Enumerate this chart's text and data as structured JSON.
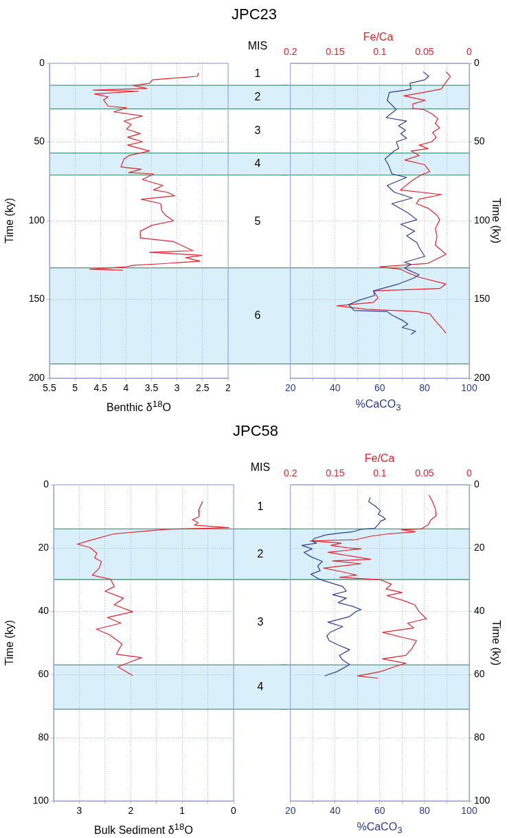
{
  "chart_data": [
    {
      "type": "line",
      "orientation": "horizontal",
      "title": "JPC23",
      "xlabel": "Benthic δ$^{18}$O",
      "ylabel": "Time (ky)",
      "grid": true,
      "annotations": [
        "MIS",
        "1",
        "2",
        "3",
        "4",
        "5",
        "6"
      ],
      "xlim": [
        5.5,
        2
      ],
      "xticks": [
        5.5,
        5,
        4.5,
        4,
        3.5,
        3,
        2.5,
        2
      ],
      "ylim": [
        200,
        0
      ],
      "yticks": [
        0,
        50,
        100,
        150,
        200
      ],
      "bands": [
        {
          "axis": "y",
          "from": 14,
          "to": 29,
          "color": "#d9f0fb"
        },
        {
          "axis": "y",
          "from": 57,
          "to": 71,
          "color": "#d9f0fb"
        },
        {
          "axis": "y",
          "from": 130,
          "to": 191,
          "color": "#d9f0fb"
        }
      ],
      "ref_lines": [
        {
          "axis": "y",
          "value": 14,
          "color": "#4a9a7a"
        },
        {
          "axis": "y",
          "value": 29,
          "color": "#4a9a7a"
        },
        {
          "axis": "y",
          "value": 57,
          "color": "#4a9a7a"
        },
        {
          "axis": "y",
          "value": 71,
          "color": "#4a9a7a"
        },
        {
          "axis": "y",
          "value": 130,
          "color": "#4a9a7a"
        },
        {
          "axis": "y",
          "value": 191,
          "color": "#4a9a7a"
        }
      ],
      "series": [
        {
          "color": "#e8202a",
          "x": [
            6.1,
            8.3,
            10.5,
            12.7,
            14.1,
            16,
            17.1,
            17.8,
            19.5,
            21.4,
            23.3,
            27.3,
            28.3,
            30.9,
            33.5,
            36.7,
            38.9,
            41.8,
            44.7,
            47,
            49.9,
            52,
            55.7,
            58.6,
            60.8,
            65.9,
            67.3,
            69.5,
            70.3,
            73.9,
            77.6,
            80.5,
            82,
            84.2,
            86.4,
            89.2,
            93.6,
            96.5,
            100.1,
            103,
            106.7,
            111,
            113.3,
            119.1,
            120.1,
            122,
            123.5,
            125.7,
            127.4,
            128.3,
            129.3,
            130.8,
            131.5
          ],
          "values": [
            2.58,
            2.6,
            3.48,
            3.54,
            3.86,
            3.59,
            4.64,
            3.76,
            4.62,
            4.35,
            4.44,
            4.35,
            3.99,
            4.24,
            3.68,
            4.04,
            3.9,
            3.99,
            3.72,
            3.97,
            3.68,
            3.97,
            3.54,
            3.94,
            4.04,
            4.1,
            3.7,
            3.95,
            3.46,
            3.68,
            3.28,
            3.46,
            3.19,
            3.05,
            3.7,
            3.32,
            3.3,
            3.23,
            3.07,
            3.5,
            3.72,
            3.72,
            3.07,
            2.69,
            3.54,
            2.51,
            2.83,
            2.55,
            3.32,
            3.86,
            3.99,
            4.71,
            4.06
          ]
        }
      ]
    },
    {
      "type": "line",
      "orientation": "horizontal",
      "xlabel": "%CaCO$_{3}$",
      "x2label": "Fe/Ca",
      "ylabel": "Time (ky)",
      "grid": true,
      "xlim": [
        20,
        100
      ],
      "xticks": [
        20,
        {
          "value": 30,
          "label": null
        },
        40,
        {
          "value": 50,
          "label": null
        },
        60,
        {
          "value": 70,
          "label": null
        },
        80,
        {
          "value": 90,
          "label": null
        },
        100
      ],
      "x2lim": [
        0.2,
        0
      ],
      "x2ticks": [
        0.2,
        0.15,
        0.1,
        0.05,
        0
      ],
      "ylim": [
        200,
        0
      ],
      "yticks": [
        0,
        50,
        100,
        150,
        200
      ],
      "bands": [
        {
          "axis": "y",
          "from": 14,
          "to": 29,
          "color": "#d9f0fb"
        },
        {
          "axis": "y",
          "from": 57,
          "to": 71,
          "color": "#d9f0fb"
        },
        {
          "axis": "y",
          "from": 130,
          "to": 191,
          "color": "#d9f0fb"
        }
      ],
      "ref_lines": [
        {
          "axis": "y",
          "value": 14,
          "color": "#4a9a7a"
        },
        {
          "axis": "y",
          "value": 29,
          "color": "#4a9a7a"
        },
        {
          "axis": "y",
          "value": 57,
          "color": "#4a9a7a"
        },
        {
          "axis": "y",
          "value": 71,
          "color": "#4a9a7a"
        },
        {
          "axis": "y",
          "value": 130,
          "color": "#4a9a7a"
        },
        {
          "axis": "y",
          "value": 191,
          "color": "#4a9a7a"
        }
      ],
      "series": [
        {
          "color": "#2a3a9a",
          "x": [
            5.4,
            8.3,
            10.5,
            12.7,
            16.3,
            17.1,
            18.5,
            23.6,
            29.4,
            34.5,
            36.7,
            39.7,
            42.6,
            44.8,
            47.7,
            49.9,
            54.2,
            55.7,
            60.8,
            64.4,
            70.3,
            72.5,
            77.6,
            81.9,
            85.6,
            89.2,
            95,
            99.4,
            102.3,
            106.7,
            109.6,
            114,
            116.9,
            122.7,
            126.4,
            127.8,
            130,
            131.5,
            134.4,
            136.6,
            140.2,
            144.6,
            147.5,
            150.4,
            153.4,
            157,
            157.7,
            159.9,
            163.6,
            165.7,
            167.9,
            170.1,
            172.3
          ],
          "values": [
            79.4,
            81.9,
            80.1,
            73.5,
            74,
            71.5,
            64.3,
            63.3,
            67.4,
            62.8,
            72,
            68.4,
            71.5,
            69.4,
            72,
            67.4,
            68.4,
            66.4,
            62.3,
            63.8,
            65.4,
            72,
            63.3,
            66.4,
            74.5,
            65.4,
            72.5,
            76.6,
            69.4,
            75.6,
            72,
            76.6,
            77.6,
            80.1,
            71,
            74,
            71,
            73,
            77.6,
            75,
            68.4,
            57.2,
            57.7,
            51.1,
            46,
            48.5,
            63.3,
            65.4,
            70.5,
            72.5,
            70,
            76,
            74
          ]
        },
        {
          "color": "#e8202a",
          "axis": "x2",
          "x": [
            5.4,
            8.3,
            10.5,
            13.4,
            16.3,
            18.5,
            20.7,
            23.6,
            25.8,
            28.7,
            29.4,
            32.4,
            35.3,
            38.2,
            41.1,
            44,
            47,
            49.9,
            52,
            54.2,
            55.7,
            58.6,
            61.5,
            64.4,
            68.8,
            71,
            74.6,
            80.5,
            83.4,
            86.3,
            89.2,
            92.1,
            96.5,
            99.4,
            105.2,
            110.1,
            115.5,
            121.3,
            124.2,
            127.1,
            129.3,
            130.8,
            133,
            135.9,
            140.2,
            143.1,
            144.6,
            149,
            151.9,
            154.1,
            156.3,
            157.7,
            159.2,
            163.6,
            167.9,
            171.6
          ],
          "values": [
            0.026,
            0.021,
            0.024,
            0.028,
            0.031,
            0.051,
            0.073,
            0.049,
            0.063,
            0.063,
            0.051,
            0.041,
            0.035,
            0.038,
            0.033,
            0.041,
            0.037,
            0.042,
            0.056,
            0.046,
            0.065,
            0.056,
            0.072,
            0.05,
            0.044,
            0.054,
            0.064,
            0.077,
            0.031,
            0.056,
            0.059,
            0.046,
            0.036,
            0.033,
            0.038,
            0.036,
            0.038,
            0.026,
            0.036,
            0.046,
            0.1,
            0.077,
            0.069,
            0.056,
            0.026,
            0.033,
            0.107,
            0.102,
            0.107,
            0.148,
            0.115,
            0.059,
            0.044,
            0.038,
            0.031,
            0.026
          ]
        }
      ]
    },
    {
      "type": "line",
      "orientation": "horizontal",
      "title": "JPC58",
      "xlabel": "Bulk Sediment δ$^{18}$O",
      "ylabel": "Time (ky)",
      "grid": true,
      "annotations": [
        "MIS",
        "1",
        "2",
        "3",
        "4"
      ],
      "ref_lines": [
        {
          "axis": "y",
          "value": 14,
          "color": "#4a9a7a"
        },
        {
          "axis": "y",
          "value": 30,
          "color": "#4a9a7a"
        },
        {
          "axis": "y",
          "value": 57,
          "color": "#4a9a7a"
        },
        {
          "axis": "y",
          "value": 71,
          "color": "#4a9a7a"
        }
      ],
      "xlim": [
        3.5,
        0
      ],
      "xticks": [
        {
          "value": 3.5,
          "label": null
        },
        3,
        {
          "value": 2.5,
          "label": null
        },
        2,
        {
          "value": 1.5,
          "label": null
        },
        1,
        {
          "value": 0.5,
          "label": null
        },
        0
      ],
      "ylim": [
        100,
        0
      ],
      "yticks": [
        0,
        20,
        40,
        60,
        80,
        100
      ],
      "bands": [
        {
          "axis": "y",
          "from": 14,
          "to": 30,
          "color": "#d9f0fb"
        },
        {
          "axis": "y",
          "from": 57,
          "to": 71,
          "color": "#d9f0fb"
        }
      ],
      "series": [
        {
          "color": "#e8202a",
          "x": [
            5.3,
            8,
            10.1,
            11.1,
            12,
            12.8,
            13.6,
            14.1,
            14.7,
            15.6,
            17.8,
            18.8,
            19.9,
            21.7,
            23.2,
            24.3,
            26.4,
            28.6,
            29.9,
            32.2,
            33.7,
            35.9,
            38,
            40.2,
            42,
            43.8,
            45.7,
            47.5,
            50.4,
            53.6,
            54.7,
            56.2,
            57.6,
            60.4
          ],
          "values": [
            0.6,
            0.68,
            0.67,
            0.8,
            0.69,
            0.76,
            0.09,
            1.29,
            1.72,
            2.34,
            2.83,
            3.04,
            2.79,
            2.66,
            2.7,
            2.57,
            2.61,
            2.75,
            2.39,
            2.32,
            2.5,
            2.14,
            2.32,
            1.96,
            2.45,
            2.19,
            2.67,
            2.41,
            2.17,
            2.28,
            1.79,
            2.03,
            2.25,
            1.96
          ]
        }
      ]
    },
    {
      "type": "line",
      "orientation": "horizontal",
      "xlabel": "%CaCO$_{3}$",
      "x2label": "Fe/Ca",
      "ylabel": "Time (ky)",
      "grid": true,
      "xlim": [
        20,
        100
      ],
      "xticks": [
        20,
        {
          "value": 30,
          "label": null
        },
        40,
        {
          "value": 50,
          "label": null
        },
        60,
        {
          "value": 70,
          "label": null
        },
        80,
        {
          "value": 90,
          "label": null
        },
        100
      ],
      "x2lim": [
        0.2,
        0
      ],
      "x2ticks": [
        0.2,
        0.15,
        0.1,
        0.05,
        0
      ],
      "ylim": [
        100,
        0
      ],
      "yticks": [
        0,
        20,
        40,
        60,
        80,
        100
      ],
      "bands": [
        {
          "axis": "y",
          "from": 14,
          "to": 30,
          "color": "#d9f0fb"
        },
        {
          "axis": "y",
          "from": 57,
          "to": 71,
          "color": "#d9f0fb"
        }
      ],
      "ref_lines": [
        {
          "axis": "y",
          "value": 14,
          "color": "#4a9a7a"
        },
        {
          "axis": "y",
          "value": 30,
          "color": "#4a9a7a"
        },
        {
          "axis": "y",
          "value": 57,
          "color": "#4a9a7a"
        },
        {
          "axis": "y",
          "value": 71,
          "color": "#4a9a7a"
        }
      ],
      "series": [
        {
          "color": "#2a3a9a",
          "x": [
            4,
            5.4,
            6.9,
            8.3,
            9.4,
            10.1,
            10.9,
            11.6,
            12.7,
            13.8,
            14.1,
            14.9,
            15.4,
            15.9,
            17,
            17.8,
            18.5,
            19.2,
            20.3,
            21.4,
            22.8,
            24.3,
            25.7,
            27.2,
            28.3,
            29.7,
            30.8,
            32.2,
            33.7,
            34.8,
            35.9,
            37.3,
            38.4,
            39.5,
            40.2,
            41.7,
            43.5,
            44.9,
            46.7,
            47.8,
            49.3,
            50.7,
            52.2,
            54,
            55.4,
            56.9,
            59.1,
            60.5
          ],
          "values": [
            55.7,
            55,
            58.2,
            60.3,
            59.2,
            61.3,
            62.5,
            60.3,
            59.2,
            57.7,
            51.6,
            48,
            40.9,
            35.8,
            30.7,
            29.7,
            31.7,
            25.1,
            29.7,
            26.1,
            29.2,
            34.3,
            32.2,
            33.3,
            29.2,
            32.2,
            36.8,
            43.4,
            45,
            38.9,
            45,
            41.4,
            47.5,
            51.6,
            49.1,
            46.5,
            36.8,
            43.4,
            37.8,
            36.3,
            37.3,
            41.4,
            46.5,
            41.9,
            43.3,
            46.5,
            40.9,
            35.3
          ]
        },
        {
          "color": "#e8202a",
          "axis": "x2",
          "x": [
            3.3,
            5.4,
            7.6,
            9.8,
            11.2,
            12.7,
            14,
            14.3,
            14.9,
            15.6,
            16.3,
            17.4,
            17.8,
            18.5,
            19.2,
            20,
            20.3,
            21.4,
            22.1,
            23.6,
            24.1,
            25,
            26.4,
            27.5,
            28.6,
            29.3,
            30.1,
            31.5,
            33,
            34.1,
            35.1,
            36.6,
            38,
            40.2,
            42.4,
            43.8,
            45.3,
            46.7,
            48.2,
            49.3,
            51.8,
            54,
            55.1,
            56.5,
            57.6,
            59.1,
            60.5,
            61.2
          ],
          "values": [
            0.045,
            0.041,
            0.038,
            0.037,
            0.043,
            0.046,
            0.054,
            0.076,
            0.06,
            0.092,
            0.11,
            0.127,
            0.178,
            0.143,
            0.155,
            0.135,
            0.121,
            0.158,
            0.143,
            0.11,
            0.153,
            0.121,
            0.163,
            0.143,
            0.126,
            0.145,
            0.099,
            0.087,
            0.093,
            0.075,
            0.092,
            0.074,
            0.061,
            0.056,
            0.048,
            0.069,
            0.062,
            0.097,
            0.076,
            0.059,
            0.064,
            0.071,
            0.097,
            0.071,
            0.084,
            0.099,
            0.125,
            0.102
          ]
        }
      ]
    }
  ]
}
